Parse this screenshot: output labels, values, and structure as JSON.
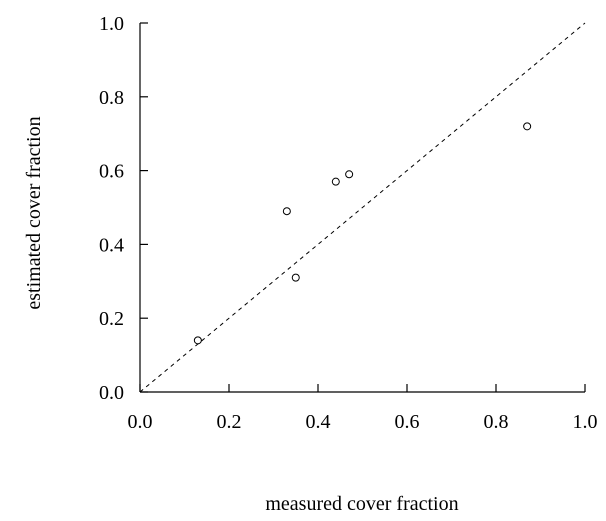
{
  "chart_data": {
    "type": "scatter",
    "title": "",
    "xlabel": "measured cover fraction",
    "ylabel": "estimated cover fraction",
    "xlim": [
      0.0,
      1.0
    ],
    "ylim": [
      0.0,
      1.0
    ],
    "x_ticks": [
      "0.0",
      "0.2",
      "0.4",
      "0.6",
      "0.8",
      "1.0"
    ],
    "y_ticks": [
      "0.0",
      "0.2",
      "0.4",
      "0.6",
      "0.8",
      "1.0"
    ],
    "grid": false,
    "reference_line": {
      "style": "dashed",
      "from": [
        0.0,
        0.0
      ],
      "to": [
        1.0,
        1.0
      ]
    },
    "series": [
      {
        "points": [
          {
            "x": 0.13,
            "y": 0.14
          },
          {
            "x": 0.33,
            "y": 0.49
          },
          {
            "x": 0.35,
            "y": 0.31
          },
          {
            "x": 0.44,
            "y": 0.57
          },
          {
            "x": 0.47,
            "y": 0.59
          },
          {
            "x": 0.87,
            "y": 0.72
          }
        ]
      }
    ]
  }
}
